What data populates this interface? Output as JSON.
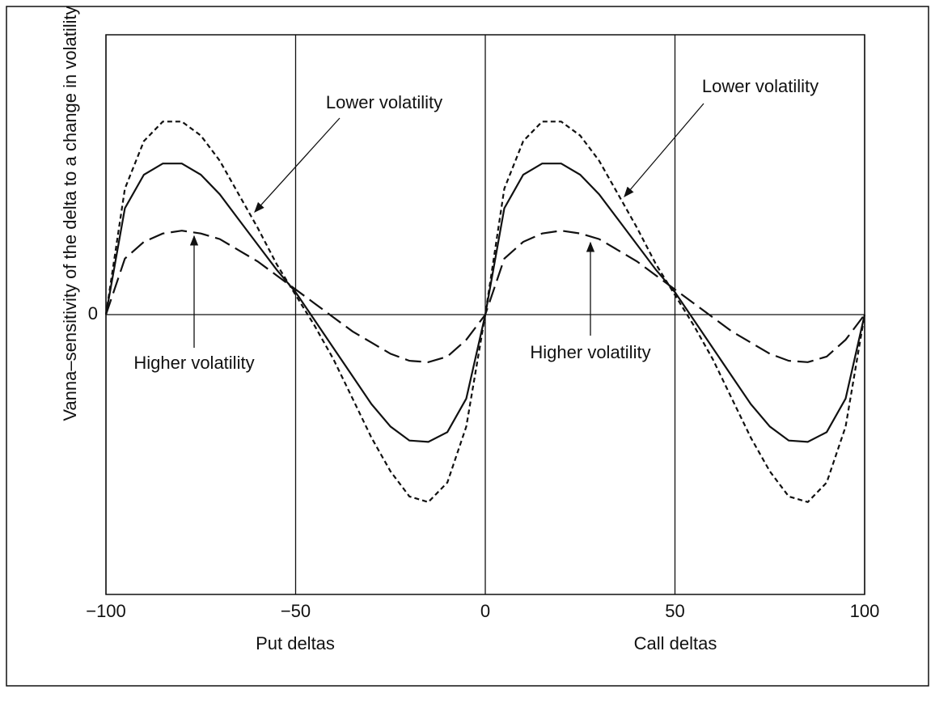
{
  "chart_data": {
    "type": "line",
    "ylabel": "Vanna–sensitivity of the delta to a change in volatility",
    "xlabels": [
      "Put deltas",
      "Call deltas"
    ],
    "x": [
      -100,
      -95,
      -90,
      -85,
      -80,
      -75,
      -70,
      -65,
      -60,
      -55,
      -50,
      -45,
      -40,
      -35,
      -30,
      -25,
      -20,
      -15,
      -10,
      -5,
      0,
      5,
      10,
      15,
      20,
      25,
      30,
      35,
      40,
      45,
      50,
      55,
      60,
      65,
      70,
      75,
      80,
      85,
      90,
      95,
      100
    ],
    "series": [
      {
        "color": "#111111",
        "dash": "short",
        "values": [
          0,
          0.45,
          0.62,
          0.69,
          0.69,
          0.64,
          0.55,
          0.43,
          0.31,
          0.18,
          0.07,
          -0.04,
          -0.16,
          -0.3,
          -0.44,
          -0.56,
          -0.65,
          -0.67,
          -0.6,
          -0.4,
          0,
          0.45,
          0.62,
          0.69,
          0.69,
          0.64,
          0.55,
          0.43,
          0.31,
          0.18,
          0.07,
          -0.04,
          -0.16,
          -0.3,
          -0.44,
          -0.56,
          -0.65,
          -0.67,
          -0.6,
          -0.4,
          0
        ]
      },
      {
        "color": "#111111",
        "dash": "none",
        "values": [
          0,
          0.38,
          0.5,
          0.54,
          0.54,
          0.5,
          0.43,
          0.34,
          0.25,
          0.16,
          0.08,
          -0.02,
          -0.12,
          -0.22,
          -0.32,
          -0.4,
          -0.45,
          -0.455,
          -0.42,
          -0.3,
          0,
          0.38,
          0.5,
          0.54,
          0.54,
          0.5,
          0.43,
          0.34,
          0.25,
          0.16,
          0.08,
          -0.02,
          -0.12,
          -0.22,
          -0.32,
          -0.4,
          -0.45,
          -0.455,
          -0.42,
          -0.3,
          0
        ]
      },
      {
        "color": "#111111",
        "dash": "long",
        "values": [
          0,
          0.2,
          0.26,
          0.29,
          0.3,
          0.29,
          0.27,
          0.23,
          0.19,
          0.14,
          0.09,
          0.04,
          -0.01,
          -0.06,
          -0.1,
          -0.14,
          -0.165,
          -0.17,
          -0.15,
          -0.09,
          0,
          0.2,
          0.26,
          0.29,
          0.3,
          0.29,
          0.27,
          0.23,
          0.19,
          0.14,
          0.09,
          0.04,
          -0.01,
          -0.06,
          -0.1,
          -0.14,
          -0.165,
          -0.17,
          -0.15,
          -0.09,
          0
        ]
      }
    ],
    "annotations": [
      "Lower volatility",
      "Lower volatility",
      "Higher volatility",
      "Higher volatility"
    ],
    "xlim": [
      -100,
      100
    ],
    "xticks": [
      {
        "value": -100,
        "label": "−100"
      },
      {
        "value": -50,
        "label": "−50"
      },
      0,
      50,
      100
    ],
    "ylim": [
      -1,
      1
    ],
    "yticks": [
      0
    ],
    "grid": true
  }
}
